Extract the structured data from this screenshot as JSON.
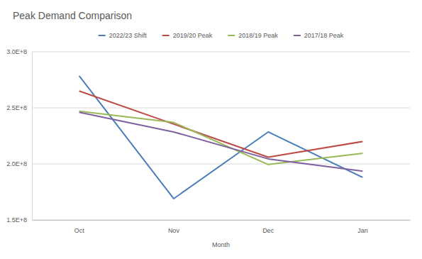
{
  "chart_data": {
    "type": "line",
    "title": "Peak Demand Comparison",
    "x_label": "Month",
    "categories": [
      "Oct",
      "Nov",
      "Dec",
      "Jan"
    ],
    "series": [
      {
        "name": "2022/23 Shift",
        "color": "#4a7ebb",
        "values": [
          278500000,
          169000000,
          228500000,
          188000000
        ]
      },
      {
        "name": "2019/20 Peak",
        "color": "#be4b48",
        "values": [
          265000000,
          235500000,
          206000000,
          220000000
        ]
      },
      {
        "name": "2018/19 Peak",
        "color": "#98b954",
        "values": [
          247000000,
          237000000,
          199500000,
          209500000
        ]
      },
      {
        "name": "2017/18 Peak",
        "color": "#7d60a0",
        "values": [
          246000000,
          228500000,
          204500000,
          193500000
        ]
      }
    ],
    "ylim": [
      150000000,
      300000000
    ],
    "yticks": [
      {
        "value": 150000000,
        "label": "1.5E+8"
      },
      {
        "value": 200000000,
        "label": "2.0E+8"
      },
      {
        "value": 250000000,
        "label": "2.5E+8"
      },
      {
        "value": 300000000,
        "label": "3.0E+8"
      }
    ],
    "grid": true,
    "legend": "top"
  }
}
